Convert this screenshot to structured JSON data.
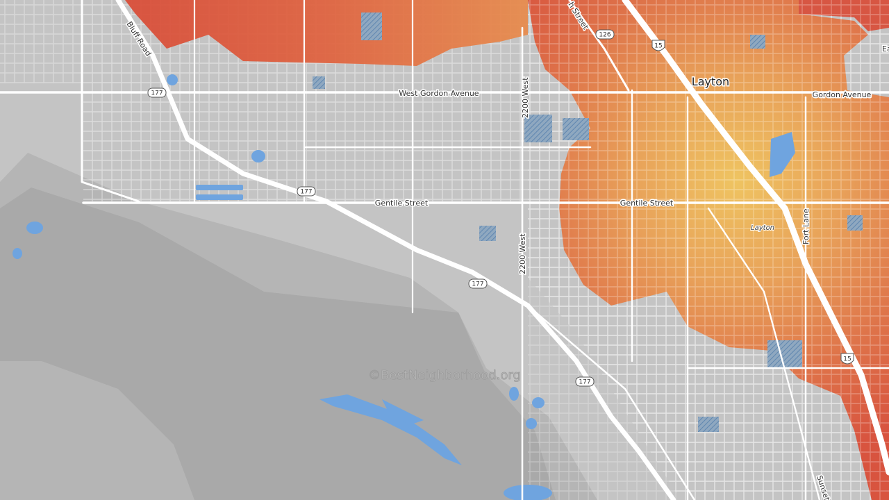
{
  "map": {
    "road_labels": [
      "Bluff Road",
      "West Gordon Avenue",
      "2200 West",
      "Gentile Street",
      "Gentile Street",
      "2200 West",
      "Gordon Avenue",
      "Fort Lane",
      "Sunset",
      "h Street",
      "Ea"
    ],
    "place_labels": [
      "Layton",
      "Layton"
    ],
    "route_shields": [
      "177",
      "177",
      "177",
      "177",
      "126"
    ],
    "interstate_shields": [
      "15",
      "15"
    ],
    "watermark": "©BestNeighborhood.org"
  }
}
